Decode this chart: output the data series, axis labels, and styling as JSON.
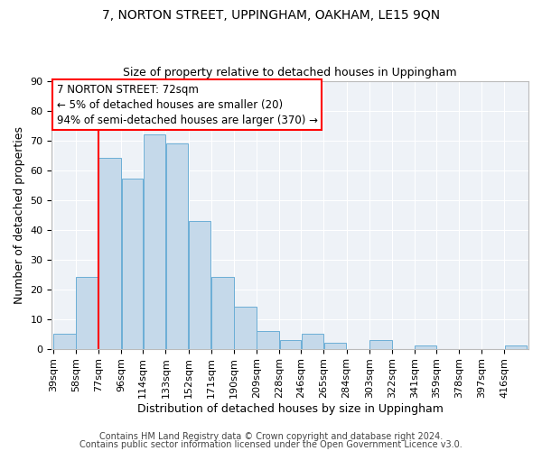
{
  "title": "7, NORTON STREET, UPPINGHAM, OAKHAM, LE15 9QN",
  "subtitle": "Size of property relative to detached houses in Uppingham",
  "xlabel": "Distribution of detached houses by size in Uppingham",
  "ylabel": "Number of detached properties",
  "bar_labels": [
    "39sqm",
    "58sqm",
    "77sqm",
    "96sqm",
    "114sqm",
    "133sqm",
    "152sqm",
    "171sqm",
    "190sqm",
    "209sqm",
    "228sqm",
    "246sqm",
    "265sqm",
    "284sqm",
    "303sqm",
    "322sqm",
    "341sqm",
    "359sqm",
    "378sqm",
    "397sqm",
    "416sqm"
  ],
  "bar_values": [
    5,
    24,
    64,
    57,
    72,
    69,
    43,
    24,
    14,
    6,
    3,
    5,
    2,
    0,
    3,
    0,
    1,
    0,
    0,
    0,
    1
  ],
  "bar_color": "#c5d9ea",
  "bar_edgecolor": "#6baed6",
  "bin_edges": [
    39,
    58,
    77,
    96,
    114,
    133,
    152,
    171,
    190,
    209,
    228,
    246,
    265,
    284,
    303,
    322,
    341,
    359,
    378,
    397,
    416,
    435
  ],
  "ylim": [
    0,
    90
  ],
  "yticks": [
    0,
    10,
    20,
    30,
    40,
    50,
    60,
    70,
    80,
    90
  ],
  "annotation_line1": "7 NORTON STREET: 72sqm",
  "annotation_line2": "← 5% of detached houses are smaller (20)",
  "annotation_line3": "94% of semi-detached houses are larger (370) →",
  "annotation_box_color": "white",
  "annotation_box_edgecolor": "red",
  "vline_color": "red",
  "footer_line1": "Contains HM Land Registry data © Crown copyright and database right 2024.",
  "footer_line2": "Contains public sector information licensed under the Open Government Licence v3.0.",
  "title_fontsize": 10,
  "subtitle_fontsize": 9,
  "label_fontsize": 9,
  "tick_fontsize": 8,
  "annotation_fontsize": 8.5,
  "footer_fontsize": 7,
  "bg_color": "#eef2f7"
}
